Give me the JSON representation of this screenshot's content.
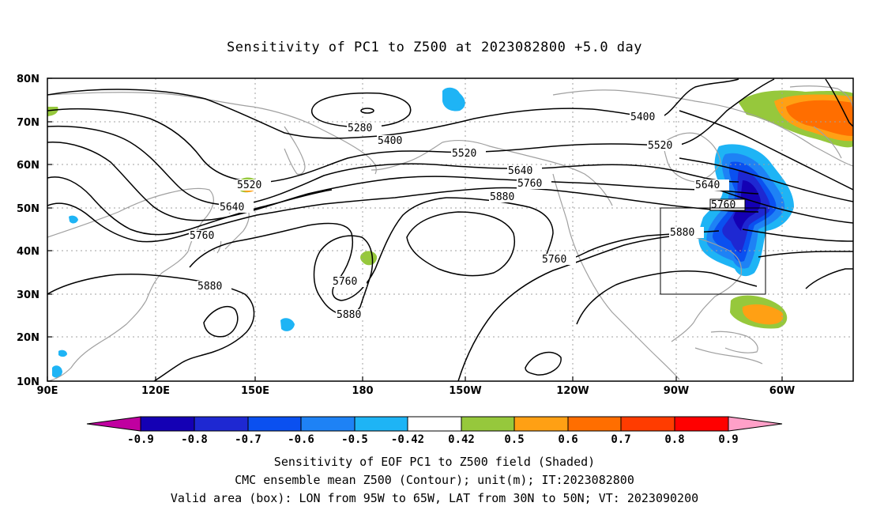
{
  "title": "Sensitivity of PC1 to Z500 at 2023082800 +5.0 day",
  "map": {
    "lat_labels": [
      "80N",
      "70N",
      "60N",
      "50N",
      "40N",
      "30N",
      "20N",
      "10N"
    ],
    "lon_labels": [
      "90E",
      "120E",
      "150E",
      "180",
      "150W",
      "120W",
      "90W",
      "60W"
    ],
    "contour_labels": [
      "5280",
      "5400",
      "5400",
      "5520",
      "5520",
      "5520",
      "5640",
      "5640",
      "5640",
      "5760",
      "5760",
      "5760",
      "5760",
      "5760",
      "5880",
      "5880",
      "5880",
      "5880"
    ],
    "valid_box": {
      "lon_west": "95W",
      "lon_east": "65W",
      "lat_south": "30N",
      "lat_north": "50N"
    },
    "colors": {
      "coast": "#a0a0a0",
      "contour": "#000000",
      "grid": "#a0a0a0"
    }
  },
  "colorbar": {
    "labels": [
      "-0.9",
      "-0.8",
      "-0.7",
      "-0.6",
      "-0.5",
      "-0.42",
      "0.42",
      "0.5",
      "0.6",
      "0.7",
      "0.8",
      "0.9"
    ],
    "colors": [
      "#c000a0",
      "#1400b4",
      "#1e28d2",
      "#0a50f0",
      "#1e82f5",
      "#1eb4f5",
      "#ffffff",
      "#96c83c",
      "#ffa014",
      "#ff6e00",
      "#ff3c00",
      "#ff0000",
      "#ffa0c8"
    ]
  },
  "captions": {
    "line1": "Sensitivity of EOF PC1 to Z500 field (Shaded)",
    "line2": "CMC ensemble mean Z500 (Contour); unit(m); IT:2023082800",
    "line3": "Valid area (box): LON from 95W to 65W, LAT from 30N to 50N; VT: 2023090200"
  }
}
